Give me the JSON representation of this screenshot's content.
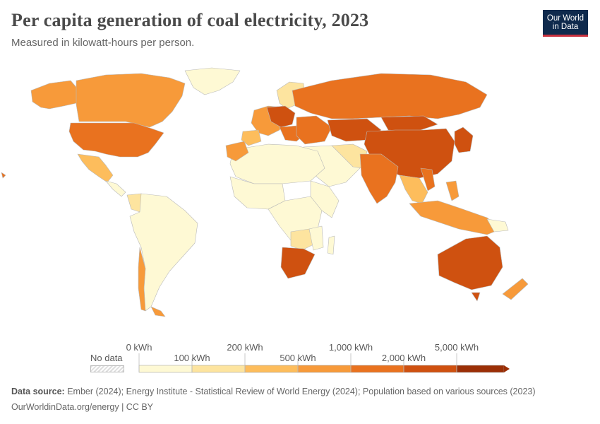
{
  "header": {
    "title": "Per capita generation of coal electricity, 2023",
    "subtitle": "Measured in kilowatt-hours per person."
  },
  "logo": {
    "line1": "Our World",
    "line2": "in Data"
  },
  "legend": {
    "no_data_label": "No data",
    "bins": [
      {
        "label_top": "0 kWh",
        "label_bottom": "100 kWh",
        "color": "#fef9d4"
      },
      {
        "label_top": "200 kWh",
        "label_bottom": "",
        "color": "#fde49f"
      },
      {
        "label_top": "",
        "label_bottom": "500 kWh",
        "color": "#fdbd5c"
      },
      {
        "label_top": "1,000 kWh",
        "label_bottom": "",
        "color": "#f79a3a"
      },
      {
        "label_top": "",
        "label_bottom": "2,000 kWh",
        "color": "#e9721f"
      },
      {
        "label_top": "5,000 kWh",
        "label_bottom": "",
        "color": "#cf5110"
      },
      {
        "label_top": "",
        "label_bottom": "",
        "color": "#9b2f06"
      }
    ],
    "tick_labels_top": [
      "0 kWh",
      "200 kWh",
      "1,000 kWh",
      "5,000 kWh"
    ],
    "tick_labels_bottom": [
      "100 kWh",
      "500 kWh",
      "2,000 kWh"
    ]
  },
  "map_colors": {
    "lowest": "#fef9d4",
    "low": "#fde49f",
    "mid_low": "#fdbd5c",
    "mid": "#f79a3a",
    "mid_high": "#e9721f",
    "high": "#cf5110",
    "very_high": "#9b2f06",
    "border": "#b9b9b9"
  },
  "footer": {
    "source_label": "Data source:",
    "source_text": "Ember (2024); Energy Institute - Statistical Review of World Energy (2024); Population based on various sources (2023)",
    "url_license": "OurWorldinData.org/energy | CC BY"
  }
}
